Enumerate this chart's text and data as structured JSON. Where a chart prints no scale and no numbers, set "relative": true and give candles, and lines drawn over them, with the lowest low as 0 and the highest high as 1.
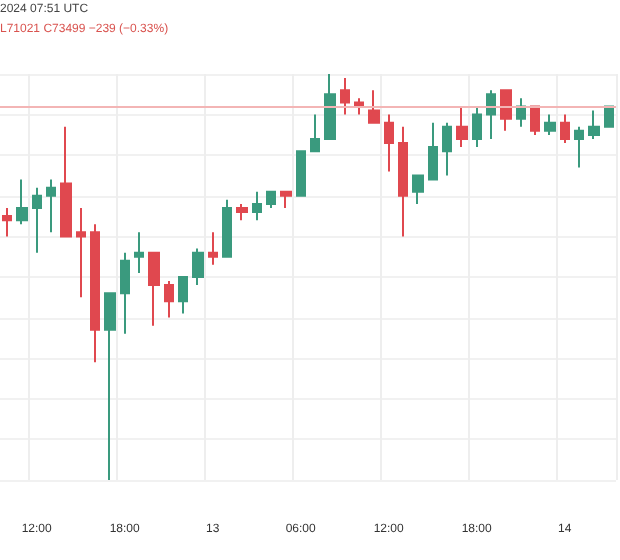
{
  "chart_data": {
    "type": "candlestick",
    "relative": true,
    "grid": true,
    "annotations": [
      "2024 07:51 UTC",
      "L71021 C73499 −239 (−0.33%)"
    ],
    "categories": [
      null,
      null,
      "12:00",
      null,
      null,
      null,
      null,
      null,
      "18:00",
      null,
      null,
      null,
      null,
      null,
      "13",
      null,
      null,
      null,
      null,
      null,
      "06:00",
      null,
      null,
      null,
      null,
      null,
      "12:00",
      null,
      null,
      null,
      null,
      null,
      "18:00",
      null,
      null,
      null,
      null,
      null,
      "14",
      null,
      null,
      null
    ],
    "ohlc": [
      [
        0.65,
        0.67,
        0.6,
        0.64
      ],
      [
        0.64,
        0.74,
        0.63,
        0.67
      ],
      [
        0.67,
        0.72,
        0.56,
        0.7
      ],
      [
        0.7,
        0.74,
        0.61,
        0.72
      ],
      [
        0.73,
        0.87,
        0.6,
        0.6
      ],
      [
        0.61,
        0.67,
        0.45,
        0.6
      ],
      [
        0.61,
        0.63,
        0.29,
        0.37
      ],
      [
        0.37,
        0.46,
        0,
        0.46
      ],
      [
        0.46,
        0.56,
        0.36,
        0.54
      ],
      [
        0.55,
        0.61,
        0.51,
        0.56
      ],
      [
        0.56,
        0.56,
        0.38,
        0.48
      ],
      [
        0.48,
        0.49,
        0.4,
        0.44
      ],
      [
        0.44,
        0.5,
        0.41,
        0.5
      ],
      [
        0.5,
        0.57,
        0.48,
        0.56
      ],
      [
        0.56,
        0.61,
        0.53,
        0.55
      ],
      [
        0.55,
        0.69,
        0.55,
        0.67
      ],
      [
        0.67,
        0.68,
        0.64,
        0.66
      ],
      [
        0.66,
        0.71,
        0.64,
        0.68
      ],
      [
        0.68,
        0.71,
        0.67,
        0.71
      ],
      [
        0.71,
        0.71,
        0.67,
        0.7
      ],
      [
        0.7,
        0.81,
        0.7,
        0.81
      ],
      [
        0.81,
        0.9,
        0.81,
        0.84
      ],
      [
        0.84,
        1,
        0.84,
        0.95
      ],
      [
        0.96,
        0.99,
        0.9,
        0.93
      ],
      [
        0.93,
        0.94,
        0.9,
        0.92
      ],
      [
        0.91,
        0.96,
        0.88,
        0.88
      ],
      [
        0.88,
        0.9,
        0.76,
        0.83
      ],
      [
        0.83,
        0.87,
        0.6,
        0.7
      ],
      [
        0.71,
        0.75,
        0.68,
        0.75
      ],
      [
        0.74,
        0.88,
        0.74,
        0.82
      ],
      [
        0.81,
        0.88,
        0.75,
        0.87
      ],
      [
        0.87,
        0.92,
        0.82,
        0.84
      ],
      [
        0.84,
        0.92,
        0.82,
        0.9
      ],
      [
        0.9,
        0.96,
        0.84,
        0.95
      ],
      [
        0.96,
        0.96,
        0.86,
        0.89
      ],
      [
        0.89,
        0.94,
        0.87,
        0.92
      ],
      [
        0.92,
        0.92,
        0.85,
        0.86
      ],
      [
        0.86,
        0.9,
        0.85,
        0.88
      ],
      [
        0.88,
        0.9,
        0.83,
        0.84
      ],
      [
        0.84,
        0.87,
        0.77,
        0.86
      ],
      [
        0.85,
        0.91,
        0.84,
        0.87
      ],
      [
        0.87,
        0.92,
        0.87,
        0.92
      ]
    ],
    "colors": [
      "#e0484f",
      "#3a9a7e",
      "#3a9a7e",
      "#3a9a7e",
      "#e0484f",
      "#e0484f",
      "#e0484f",
      "#3a9a7e",
      "#3a9a7e",
      "#3a9a7e",
      "#e0484f",
      "#e0484f",
      "#3a9a7e",
      "#3a9a7e",
      "#e0484f",
      "#3a9a7e",
      "#e0484f",
      "#3a9a7e",
      "#3a9a7e",
      "#e0484f",
      "#3a9a7e",
      "#3a9a7e",
      "#3a9a7e",
      "#e0484f",
      "#e0484f",
      "#e0484f",
      "#e0484f",
      "#e0484f",
      "#3a9a7e",
      "#3a9a7e",
      "#3a9a7e",
      "#e0484f",
      "#3a9a7e",
      "#3a9a7e",
      "#e0484f",
      "#3a9a7e",
      "#e0484f",
      "#3a9a7e",
      "#e0484f",
      "#3a9a7e",
      "#3a9a7e",
      "#3a9a7e"
    ],
    "ref_lines": [
      {
        "axis": "y",
        "value": 0.92,
        "color": "#f3b5b5"
      }
    ]
  }
}
